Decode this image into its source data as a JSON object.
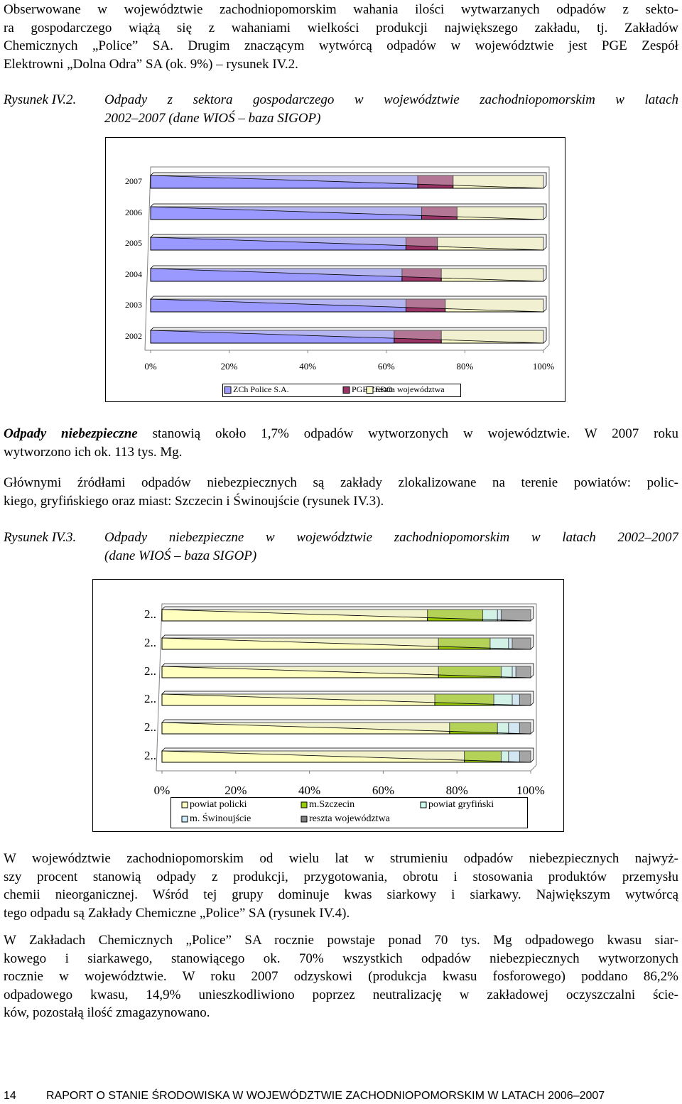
{
  "paragraphs": [
    {
      "lines": [
        "Obserwowane w województwie zachodniopomorskim wahania ilości wytwarzanych odpadów z sekto-",
        "ra gospodarczego wiążą się z wahaniami wielkości produkcji największego zakładu, tj. Zakładów",
        "Chemicznych „Police” SA. Drugim znaczącym wytwórcą odpadów w województwie jest PGE Zespół",
        "Elektrowni „Dolna Odra” SA (ok. 9%) – rysunek IV.2."
      ]
    },
    {
      "emphasis": "Odpady niebezpieczne",
      "lines": [
        " stanowią około 1,7% odpadów wytworzonych w województwie. W 2007 roku",
        "wytworzono ich ok. 113 tys. Mg."
      ]
    },
    {
      "lines": [
        "Głównymi źródłami odpadów niebezpiecznych są zakłady zlokalizowane na terenie powiatów: polic-",
        "kiego, gryfińskiego oraz miast: Szczecin i Świnoujście (rysunek IV.3)."
      ]
    },
    {
      "lines": [
        "W województwie zachodniopomorskim od wielu lat w strumieniu odpadów niebezpiecznych najwyż-",
        "szy procent stanowią odpady z produkcji, przygotowania, obrotu i stosowania produktów przemysłu",
        "chemii nieorganicznej. Wśród tej grupy dominuje kwas siarkowy i siarkawy. Największym wytwórcą",
        "tego odpadu są Zakłady Chemiczne „Police” SA (rysunek IV.4)."
      ]
    },
    {
      "lines": [
        "W Zakładach Chemicznych „Police” SA rocznie powstaje ponad 70 tys. Mg odpadowego kwasu siar-",
        "kowego i siarkawego, stanowiącego ok. 70% wszystkich odpadów niebezpiecznych wytworzonych",
        "rocznie w województwie. W roku 2007 odzyskowi (produkcja kwasu fosforowego) poddano 86,2%",
        "odpadowego kwasu, 14,9% unieszkodliwiono poprzez neutralizację w zakładowej oczyszczalni ście-",
        "ków, pozostałą ilość zmagazynowano."
      ]
    }
  ],
  "captions": [
    {
      "label": "Rysunek IV.2.",
      "lines": [
        "Odpady z sektora gospodarczego w województwie zachodniopomorskim w latach",
        "2002–2007 (dane WIOŚ – baza SIGOP)"
      ]
    },
    {
      "label": "Rysunek IV.3.",
      "lines": [
        "Odpady niebezpieczne w województwie zachodniopomorskim w latach 2002–2007",
        "(dane WIOŚ – baza SIGOP)"
      ]
    }
  ],
  "chart_data": [
    {
      "type": "bar",
      "orientation": "horizontal",
      "stacked": true,
      "legend": "bottom",
      "grid": false,
      "categories": [
        "2007",
        "2006",
        "2005",
        "2004",
        "2003",
        "2002"
      ],
      "series": [
        {
          "name": "ZCh Police S.A.",
          "color": "#9999ff",
          "values": [
            68,
            69,
            65,
            64,
            65,
            62
          ]
        },
        {
          "name": "PGE ZEDO",
          "color": "#993366",
          "values": [
            9,
            9,
            8,
            10,
            10,
            12
          ]
        },
        {
          "name": "reszta województwa",
          "color": "#ffffcc",
          "values": [
            23,
            22,
            27,
            26,
            25,
            26
          ]
        }
      ],
      "xlim": [
        0,
        100
      ],
      "xticks": [
        {
          "value": 0,
          "label": "0%"
        },
        {
          "value": 20,
          "label": "20%"
        },
        {
          "value": 40,
          "label": "40%"
        },
        {
          "value": 60,
          "label": "60%"
        },
        {
          "value": 80,
          "label": "80%"
        },
        {
          "value": 100,
          "label": "100%"
        }
      ]
    },
    {
      "type": "bar",
      "orientation": "horizontal",
      "stacked": true,
      "legend": "bottom",
      "grid": false,
      "categories": [
        "2..",
        "2..",
        "2..",
        "2..",
        "2..",
        "2.."
      ],
      "series": [
        {
          "name": "powiat policki",
          "color": "#ffffc0",
          "values": [
            72,
            75,
            75,
            74,
            78,
            82
          ]
        },
        {
          "name": "m.Szczecin",
          "color": "#99cc00",
          "values": [
            15,
            14,
            17,
            16,
            13,
            10
          ]
        },
        {
          "name": "powiat gryfiński",
          "color": "#ccffee",
          "values": [
            4,
            5,
            3,
            5,
            3,
            2
          ]
        },
        {
          "name": "m. Świnoujście",
          "color": "#cceeff",
          "values": [
            1,
            1,
            1,
            2,
            3,
            3
          ]
        },
        {
          "name": "reszta województwa",
          "color": "#808080",
          "values": [
            8,
            5,
            4,
            3,
            3,
            3
          ]
        }
      ],
      "xlim": [
        0,
        100
      ],
      "xticks": [
        {
          "value": 0,
          "label": "0%"
        },
        {
          "value": 20,
          "label": "20%"
        },
        {
          "value": 40,
          "label": "40%"
        },
        {
          "value": 60,
          "label": "60%"
        },
        {
          "value": 80,
          "label": "80%"
        },
        {
          "value": 100,
          "label": "100%"
        }
      ]
    }
  ],
  "footer": {
    "page": "14",
    "title": "RAPORT O STANIE ŚRODOWISKA W WOJEWÓDZTWIE ZACHODNIOPOMORSKIM W LATACH 2006–2007"
  }
}
